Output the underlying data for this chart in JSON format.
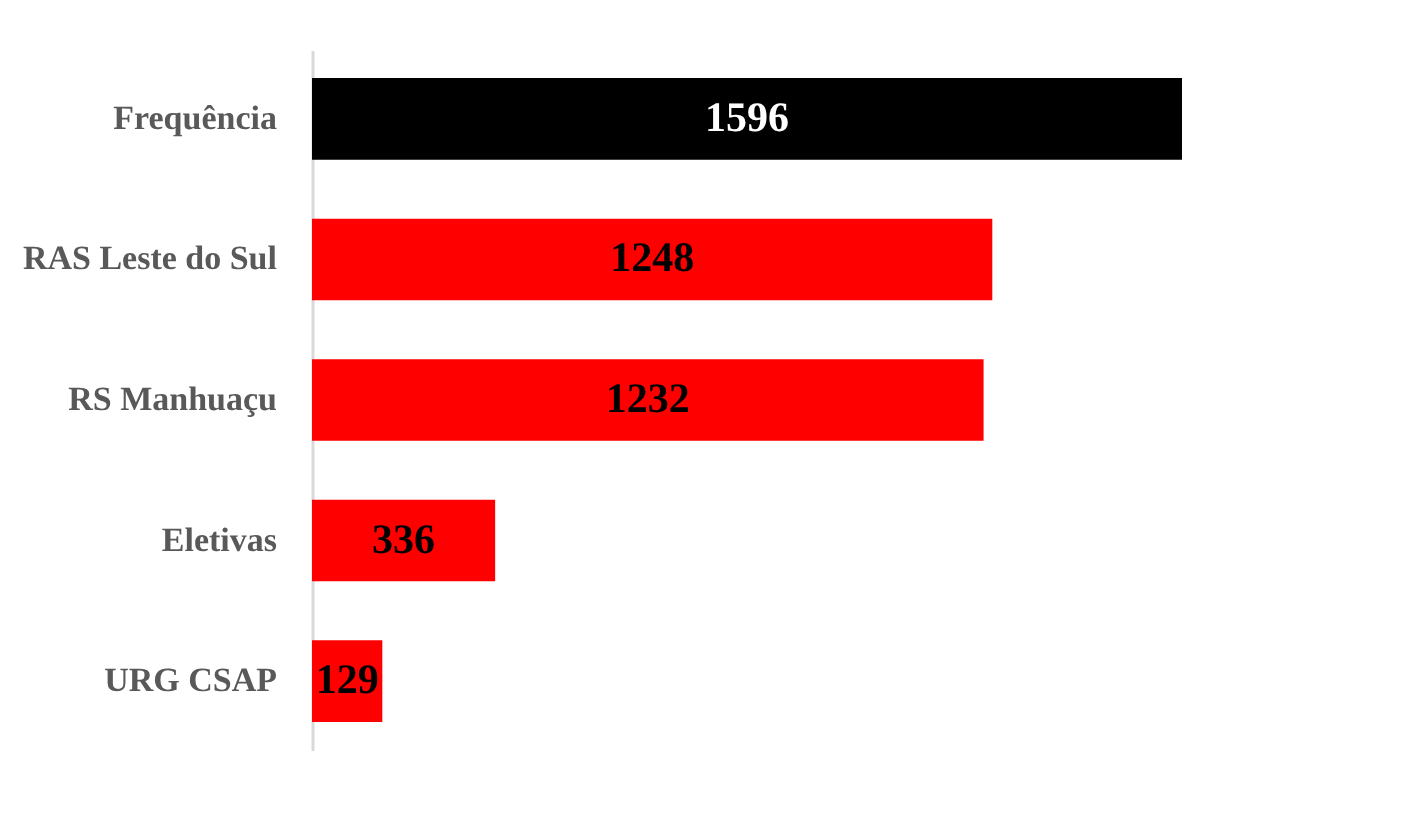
{
  "chart_data": {
    "type": "bar",
    "orientation": "horizontal",
    "categories": [
      "Frequência",
      "RAS Leste do Sul",
      "RS Manhuaçu",
      "Eletivas",
      "URG CSAP"
    ],
    "values": [
      1596,
      1248,
      1232,
      336,
      129
    ],
    "colors": [
      "#000000",
      "#ff0000",
      "#ff0000",
      "#ff0000",
      "#ff0000"
    ],
    "data_labels": true,
    "grid": false
  }
}
